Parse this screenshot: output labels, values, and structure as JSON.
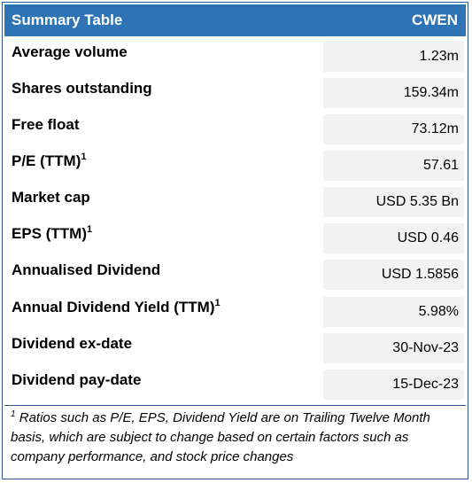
{
  "header": {
    "title": "Summary Table",
    "ticker": "CWEN"
  },
  "rows": [
    {
      "label": "Average volume",
      "value": "1.23m"
    },
    {
      "label": "Shares outstanding",
      "value": "159.34m"
    },
    {
      "label": "Free float",
      "value": "73.12m"
    },
    {
      "label": "P/E (TTM)",
      "sup": "1",
      "value": "57.61"
    },
    {
      "label": "Market cap",
      "value": "USD 5.35 Bn"
    },
    {
      "label": "EPS (TTM)",
      "sup": "1",
      "value": "USD 0.46"
    },
    {
      "label": "Annualised Dividend",
      "value": "USD 1.5856"
    },
    {
      "label": "Annual Dividend Yield (TTM)",
      "sup": "1",
      "value": "5.98%"
    },
    {
      "label": "Dividend ex-date",
      "value": "30-Nov-23"
    },
    {
      "label": "Dividend pay-date",
      "value": "15-Dec-23"
    }
  ],
  "footnote": {
    "marker": "1",
    "text": "Ratios such as P/E, EPS, Dividend Yield are on Trailing Twelve Month basis, which are subject to change based on certain factors such as company performance, and stock price changes"
  }
}
